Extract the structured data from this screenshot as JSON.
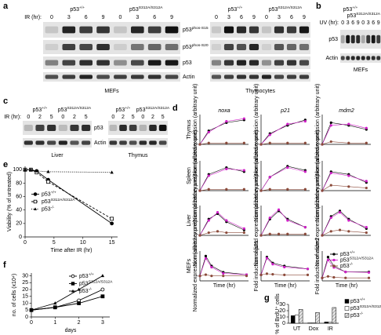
{
  "panels": {
    "a": {
      "panel_label": "a",
      "ir_label": "IR (hr):",
      "genotypes": [
        "p53+/+",
        "p53S312A/S312A"
      ],
      "timepoints": [
        "0",
        "3",
        "6",
        "9"
      ],
      "rows": [
        "p53phos-S15",
        "p53phos-S20",
        "p53",
        "Actin"
      ],
      "captions": [
        "MEFs",
        "Thymocytes"
      ]
    },
    "b": {
      "panel_label": "b",
      "uv_label": "UV (hr):",
      "genotypes": [
        "p53+/+",
        "p53S312A/S312A"
      ],
      "timepoints": [
        "0",
        "3",
        "6",
        "9"
      ],
      "rows": [
        "p53",
        "Actin"
      ],
      "caption": "MEFs"
    },
    "c": {
      "panel_label": "c",
      "ir_label": "IR (hr):",
      "genotypes": [
        "p53+/+",
        "p53S312A/S312A"
      ],
      "timepoints": [
        "0",
        "2",
        "5"
      ],
      "rows": [
        "p53",
        "Actin"
      ],
      "captions": [
        "Liver",
        "Thymus"
      ]
    },
    "d": {
      "panel_label": "d"
    }
  },
  "chart_data": [
    {
      "type": "line",
      "panel_label": "e",
      "xlabel": "Time after IR (hr)",
      "ylabel": "Viability (% of untreated)",
      "x": [
        0,
        1,
        2,
        4,
        15
      ],
      "xlim": [
        0,
        16
      ],
      "xticks": [
        0,
        5,
        10,
        15
      ],
      "ylim": [
        0,
        105
      ],
      "yticks": [
        0,
        20,
        40,
        60,
        80,
        100
      ],
      "legend": "center left",
      "series": [
        {
          "name": "p53+/+",
          "color": "#000000",
          "marker": "circle",
          "dash": "solid",
          "values": [
            100,
            100,
            98,
            85,
            20
          ]
        },
        {
          "name": "p53S312A/S312A",
          "color": "#000000",
          "marker": "square-open",
          "dash": "dashed",
          "values": [
            100,
            100,
            96,
            82,
            27
          ]
        },
        {
          "name": "p53-/-",
          "color": "#000000",
          "marker": "triangle",
          "dash": "dotted",
          "values": [
            100,
            100,
            98,
            97,
            96
          ]
        }
      ]
    },
    {
      "type": "line",
      "panel_label": "f",
      "xlabel": "days",
      "ylabel": "no. of cells (x10⁴)",
      "x": [
        0,
        1,
        2,
        3
      ],
      "xlim": [
        0,
        3.3
      ],
      "xticks": [
        0,
        1,
        2,
        3
      ],
      "ylim": [
        0,
        32
      ],
      "yticks": [
        0,
        5,
        10,
        15,
        20,
        25,
        30
      ],
      "legend": "upper right",
      "series": [
        {
          "name": "p53+/+",
          "color": "#000000",
          "marker": "circle-open",
          "dash": "solid",
          "values": [
            5,
            7,
            12,
            20
          ]
        },
        {
          "name": "p53S312A/S312A",
          "color": "#000000",
          "marker": "square",
          "dash": "solid",
          "values": [
            5,
            7,
            10,
            15
          ]
        },
        {
          "name": "p53-/-",
          "color": "#000000",
          "marker": "triangle",
          "dash": "solid",
          "values": [
            5,
            10,
            20,
            30
          ]
        }
      ]
    },
    {
      "type": "bar",
      "panel_label": "g",
      "ylabel": "% of BrdU⁺ cells",
      "categories": [
        "UT",
        "Dox",
        "IR"
      ],
      "ylim": [
        0,
        30
      ],
      "yticks": [
        0,
        10,
        20,
        30
      ],
      "legend": "outside right",
      "series": [
        {
          "name": "p53+/+",
          "color": "#000000",
          "pattern": "solid",
          "values": [
            12,
            0.5,
            2
          ]
        },
        {
          "name": "p53S312A/S312A",
          "color": "#ffffff",
          "pattern": "solid",
          "values": [
            13,
            0.5,
            1.5
          ]
        },
        {
          "name": "p53-/-",
          "color": "#bbbbbb",
          "pattern": "hatch",
          "values": [
            22,
            17,
            25
          ]
        }
      ]
    },
    {
      "type": "line",
      "title": "noxa",
      "row_label": "Thymus",
      "ylabel": "Normalized expression (arbitrary unit)",
      "x": [
        0,
        1,
        3,
        5
      ],
      "xlim": [
        0,
        5.5
      ],
      "ylim": [
        0,
        1.1
      ],
      "series": [
        {
          "color": "#000000",
          "values": [
            0,
            0.5,
            0.8,
            0.9
          ]
        },
        {
          "color": "#d020c8",
          "values": [
            0,
            0.45,
            0.85,
            0.95
          ]
        },
        {
          "color": "#8b4a3a",
          "values": [
            0,
            0.05,
            0.05,
            0.05
          ]
        }
      ]
    },
    {
      "type": "line",
      "title": "p21",
      "ylabel": "Normalized expression (arbitrary unit)",
      "x": [
        0,
        1,
        3,
        5
      ],
      "xlim": [
        0,
        5.5
      ],
      "ylim": [
        0,
        1.1
      ],
      "series": [
        {
          "color": "#000000",
          "values": [
            0,
            0.4,
            0.7,
            0.9
          ]
        },
        {
          "color": "#d020c8",
          "values": [
            0,
            0.35,
            0.75,
            0.85
          ]
        },
        {
          "color": "#8b4a3a",
          "values": [
            0,
            0.05,
            0.05,
            0.05
          ]
        }
      ]
    },
    {
      "type": "line",
      "title": "mdm2",
      "ylabel": "Normalized expression (arbitrary unit)",
      "x": [
        0,
        1,
        3,
        5
      ],
      "xlim": [
        0,
        5.5
      ],
      "ylim": [
        0,
        1.1
      ],
      "series": [
        {
          "color": "#000000",
          "values": [
            0,
            0.8,
            0.7,
            0.55
          ]
        },
        {
          "color": "#d020c8",
          "values": [
            0,
            0.7,
            0.75,
            0.6
          ]
        },
        {
          "color": "#8b4a3a",
          "values": [
            0,
            0.1,
            0.05,
            0.05
          ]
        }
      ]
    },
    {
      "type": "line",
      "row_label": "Spleen",
      "ylabel": "Normalized expression (arbitrary unit)",
      "x": [
        0,
        1,
        3,
        5
      ],
      "xlim": [
        0,
        5.5
      ],
      "ylim": [
        0,
        1.1
      ],
      "series": [
        {
          "color": "#000000",
          "values": [
            0,
            0.6,
            0.85,
            0.7
          ]
        },
        {
          "color": "#d020c8",
          "values": [
            0,
            0.55,
            0.8,
            0.75
          ]
        },
        {
          "color": "#8b4a3a",
          "values": [
            0,
            0.05,
            0.05,
            0.05
          ]
        }
      ]
    },
    {
      "type": "line",
      "ylabel": "Normalized expression (arbitrary unit)",
      "x": [
        0,
        1,
        3,
        5
      ],
      "xlim": [
        0,
        5.5
      ],
      "ylim": [
        0,
        1.1
      ],
      "series": [
        {
          "color": "#000000",
          "values": [
            0,
            0.5,
            0.9,
            0.75
          ]
        },
        {
          "color": "#d020c8",
          "values": [
            0,
            0.5,
            0.85,
            0.7
          ]
        },
        {
          "color": "#8b4a3a",
          "values": [
            0,
            0.05,
            0.05,
            0.05
          ]
        }
      ]
    },
    {
      "type": "line",
      "ylabel": "Normalized expression (arbitrary unit)",
      "x": [
        0,
        1,
        3,
        5
      ],
      "xlim": [
        0,
        5.5
      ],
      "ylim": [
        0,
        1.1
      ],
      "series": [
        {
          "color": "#000000",
          "values": [
            0,
            0.7,
            0.6,
            0.3
          ]
        },
        {
          "color": "#d020c8",
          "values": [
            0,
            0.65,
            0.55,
            0.35
          ]
        },
        {
          "color": "#8b4a3a",
          "values": [
            0,
            0.2,
            0.15,
            0.1
          ]
        }
      ]
    },
    {
      "type": "line",
      "row_label": "Liver",
      "ylabel": "Normalized expression (arbitrary unit)",
      "x": [
        0,
        1,
        2,
        3,
        5
      ],
      "xlim": [
        0,
        5.5
      ],
      "ylim": [
        0,
        1.1
      ],
      "series": [
        {
          "color": "#000000",
          "values": [
            0,
            0.6,
            0.8,
            0.5,
            0.2
          ]
        },
        {
          "color": "#d020c8",
          "values": [
            0,
            0.55,
            0.85,
            0.55,
            0.25
          ]
        },
        {
          "color": "#8b4a3a",
          "values": [
            0,
            0.1,
            0.15,
            0.1,
            0.1
          ]
        }
      ]
    },
    {
      "type": "line",
      "ylabel": "Normalized expression (arbitrary unit)",
      "x": [
        0,
        1,
        2,
        3,
        5
      ],
      "xlim": [
        0,
        5.5
      ],
      "ylim": [
        0,
        1.1
      ],
      "series": [
        {
          "color": "#000000",
          "values": [
            0,
            0.6,
            0.9,
            0.6,
            0.3
          ]
        },
        {
          "color": "#d020c8",
          "values": [
            0,
            0.65,
            0.95,
            0.55,
            0.3
          ]
        },
        {
          "color": "#8b4a3a",
          "values": [
            0,
            0.05,
            0.05,
            0.05,
            0.05
          ]
        }
      ]
    },
    {
      "type": "line",
      "ylabel": "Normalized expression (arbitrary unit)",
      "x": [
        0,
        1,
        2,
        3,
        5
      ],
      "xlim": [
        0,
        5.5
      ],
      "ylim": [
        0,
        1.1
      ],
      "series": [
        {
          "color": "#000000",
          "values": [
            0,
            0.7,
            0.9,
            0.6,
            0.25
          ]
        },
        {
          "color": "#d020c8",
          "values": [
            0,
            0.65,
            0.85,
            0.55,
            0.3
          ]
        },
        {
          "color": "#8b4a3a",
          "values": [
            0,
            0.15,
            0.2,
            0.15,
            0.1
          ]
        }
      ]
    },
    {
      "type": "line",
      "row_label": "MEFs",
      "ylabel": "Normalized expression (arbitrary unit)",
      "xlabel": "Time (hr)",
      "x": [
        0,
        3,
        6,
        12,
        24
      ],
      "xlim": [
        0,
        25
      ],
      "ylim": [
        0,
        1.2
      ],
      "series": [
        {
          "color": "#000000",
          "values": [
            0.2,
            1.0,
            0.6,
            0.35,
            0.25
          ]
        },
        {
          "color": "#d020c8",
          "values": [
            0.2,
            0.9,
            0.55,
            0.3,
            0.25
          ]
        },
        {
          "color": "#8b4a3a",
          "values": [
            0.2,
            0.25,
            0.2,
            0.2,
            0.2
          ]
        }
      ]
    },
    {
      "type": "line",
      "ylabel": "Fold induction of p21",
      "xlabel": "Time (hr)",
      "x": [
        0,
        3,
        6,
        12,
        24
      ],
      "xlim": [
        0,
        25
      ],
      "ylim": [
        0,
        5
      ],
      "series": [
        {
          "color": "#000000",
          "values": [
            1,
            4,
            3,
            2.5,
            2
          ]
        },
        {
          "color": "#d020c8",
          "values": [
            1,
            3.8,
            2.8,
            2.3,
            2
          ]
        },
        {
          "color": "#8b4a3a",
          "values": [
            1,
            1.2,
            1.1,
            1,
            1
          ]
        }
      ]
    },
    {
      "type": "line",
      "ylabel": "Fold induction of mdm2",
      "xlabel": "Time (hr)",
      "x": [
        0,
        3,
        6,
        12,
        24
      ],
      "xlim": [
        0,
        25
      ],
      "ylim": [
        0,
        10
      ],
      "legend": "upper right",
      "series": [
        {
          "name": "p53+/+",
          "color": "#000000",
          "values": [
            1,
            8,
            5,
            3,
            3
          ]
        },
        {
          "name": "p53S312A/S312A",
          "color": "#d020c8",
          "values": [
            1,
            7,
            4.5,
            3,
            2.8
          ]
        },
        {
          "name": "p53-/-",
          "color": "#8b4a3a",
          "values": [
            1,
            1.5,
            1.2,
            1,
            1
          ]
        }
      ]
    }
  ]
}
